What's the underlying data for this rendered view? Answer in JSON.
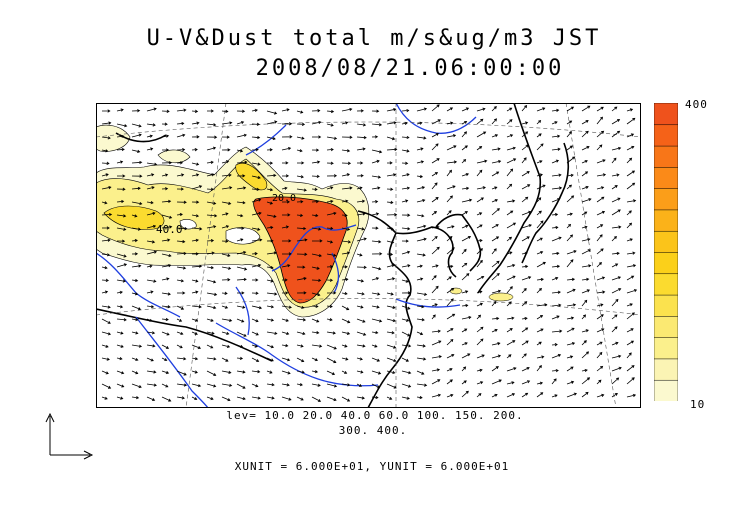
{
  "title": {
    "line1": "U-V&Dust total m/s&ug/m3 JST",
    "line2": "2008/08/21.06:00:00"
  },
  "colorbar": {
    "max_label": "400",
    "min_label": "10",
    "colors": [
      "#fbf9cf",
      "#fbf4b4",
      "#fbf08c",
      "#fbe972",
      "#fbe24e",
      "#fbdb2f",
      "#fbd01a",
      "#fbc41a",
      "#fbb219",
      "#fb9e19",
      "#fb8a18",
      "#f87618",
      "#f56218",
      "#ef521c"
    ]
  },
  "contour_levels": {
    "line1": "lev= 10.0 20.0 40.0 60.0 100. 150. 200.",
    "line2": "300. 400."
  },
  "map_labels": {
    "label_a": "40.0",
    "label_b": "20.0"
  },
  "units": "XUNIT = 6.000E+01, YUNIT = 6.000E+01",
  "colors": {
    "coast": "#000000",
    "rivers": "#1f3fe0",
    "vectors": "#000000",
    "peak": "#ef521c"
  }
}
